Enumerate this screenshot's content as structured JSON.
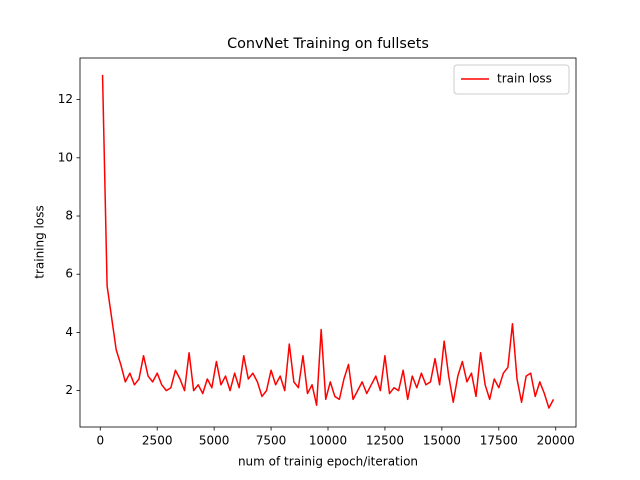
{
  "chart_data": {
    "type": "line",
    "title": "ConvNet Training on fullsets",
    "xlabel": "num of trainig epoch/iteration",
    "ylabel": "training loss",
    "x": [
      100,
      300,
      500,
      700,
      900,
      1100,
      1300,
      1500,
      1700,
      1900,
      2100,
      2300,
      2500,
      2700,
      2900,
      3100,
      3300,
      3500,
      3700,
      3900,
      4100,
      4300,
      4500,
      4700,
      4900,
      5100,
      5300,
      5500,
      5700,
      5900,
      6100,
      6300,
      6500,
      6700,
      6900,
      7100,
      7300,
      7500,
      7700,
      7900,
      8100,
      8300,
      8500,
      8700,
      8900,
      9100,
      9300,
      9500,
      9700,
      9900,
      10100,
      10300,
      10500,
      10700,
      10900,
      11100,
      11300,
      11500,
      11700,
      11900,
      12100,
      12300,
      12500,
      12700,
      12900,
      13100,
      13300,
      13500,
      13700,
      13900,
      14100,
      14300,
      14500,
      14700,
      14900,
      15100,
      15300,
      15500,
      15700,
      15900,
      16100,
      16300,
      16500,
      16700,
      16900,
      17100,
      17300,
      17500,
      17700,
      17900,
      18100,
      18300,
      18500,
      18700,
      18900,
      19100,
      19300,
      19500,
      19700,
      19900
    ],
    "series": [
      {
        "name": "train loss",
        "color": "#ff0000",
        "values": [
          12.85,
          5.6,
          4.5,
          3.4,
          2.9,
          2.3,
          2.6,
          2.2,
          2.4,
          3.2,
          2.5,
          2.3,
          2.6,
          2.2,
          2.0,
          2.1,
          2.7,
          2.4,
          2.0,
          3.3,
          2.0,
          2.2,
          1.9,
          2.4,
          2.1,
          3.0,
          2.2,
          2.5,
          2.0,
          2.6,
          2.1,
          3.2,
          2.4,
          2.6,
          2.3,
          1.8,
          2.0,
          2.7,
          2.2,
          2.5,
          2.0,
          3.6,
          2.3,
          2.1,
          3.2,
          1.9,
          2.2,
          1.5,
          4.1,
          1.7,
          2.3,
          1.8,
          1.7,
          2.4,
          2.9,
          1.7,
          2.0,
          2.3,
          1.9,
          2.2,
          2.5,
          2.0,
          3.2,
          1.9,
          2.1,
          2.0,
          2.7,
          1.7,
          2.5,
          2.1,
          2.6,
          2.2,
          2.3,
          3.1,
          2.2,
          3.7,
          2.5,
          1.6,
          2.5,
          3.0,
          2.3,
          2.6,
          1.8,
          3.3,
          2.2,
          1.7,
          2.4,
          2.1,
          2.6,
          2.8,
          4.3,
          2.4,
          1.6,
          2.5,
          2.6,
          1.8,
          2.3,
          1.9,
          1.4,
          1.7
        ]
      }
    ],
    "xlim": [
      -890,
      20890
    ],
    "ylim": [
      0.75,
      13.43
    ],
    "xticks": [
      0,
      2500,
      5000,
      7500,
      10000,
      12500,
      15000,
      17500,
      20000
    ],
    "yticks": [
      2,
      4,
      6,
      8,
      10,
      12
    ],
    "grid": false,
    "legend": "upper right"
  }
}
